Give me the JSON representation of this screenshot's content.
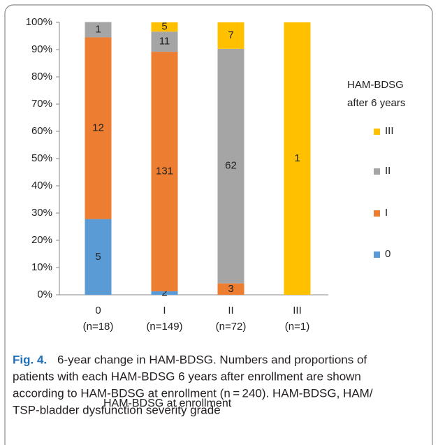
{
  "chart_data": {
    "type": "stacked_bar_percent",
    "categories": [
      "0",
      "I",
      "II",
      "III"
    ],
    "category_sizes": [
      "(n=18)",
      "(n=149)",
      "(n=72)",
      "(n=1)"
    ],
    "series": [
      {
        "name": "0",
        "color": "#5b9bd5",
        "values": [
          27.8,
          1.3,
          0,
          0
        ],
        "counts": [
          5,
          2,
          null,
          null
        ]
      },
      {
        "name": "I",
        "color": "#ed7d31",
        "values": [
          66.7,
          87.9,
          4.2,
          0
        ],
        "counts": [
          12,
          131,
          3,
          null
        ]
      },
      {
        "name": "II",
        "color": "#a5a5a5",
        "values": [
          5.6,
          7.4,
          86.1,
          0
        ],
        "counts": [
          1,
          11,
          62,
          null
        ]
      },
      {
        "name": "III",
        "color": "#ffc000",
        "values": [
          0,
          3.4,
          9.7,
          100
        ],
        "counts": [
          null,
          5,
          7,
          1
        ]
      }
    ],
    "ylim": [
      0,
      100
    ],
    "yticks": [
      {
        "value": 0,
        "label": "0%"
      },
      {
        "value": 10,
        "label": "10%"
      },
      {
        "value": 20,
        "label": "20%"
      },
      {
        "value": 30,
        "label": "30%"
      },
      {
        "value": 40,
        "label": "40%"
      },
      {
        "value": 50,
        "label": "50%"
      },
      {
        "value": 60,
        "label": "60%"
      },
      {
        "value": 70,
        "label": "70%"
      },
      {
        "value": 80,
        "label": "80%"
      },
      {
        "value": 90,
        "label": "90%"
      },
      {
        "value": 100,
        "label": "100%"
      }
    ],
    "x_label": "HAM-BDSG at enrollment",
    "legend_title": [
      "HAM-BDSG",
      "after 6 years"
    ],
    "legend_position": "right",
    "grid": false
  },
  "caption": {
    "label": "Fig. 4.",
    "lines": [
      "6-year change in HAM-BDSG. Numbers and proportions of",
      "patients with each HAM-BDSG 6 years after enrollment are shown",
      "according to HAM-BDSG at enrollment (n = 240). HAM-BDSG, HAM/",
      "TSP-bladder dysfunction severity grade"
    ]
  }
}
